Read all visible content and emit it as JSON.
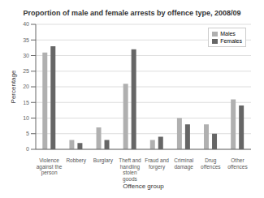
{
  "chart_data": {
    "type": "bar",
    "title": "Proportion of male and female arrests by offence type, 2008/09",
    "xlabel": "Offence group",
    "ylabel": "Percentage",
    "categories": [
      "Violence\nagainst the\nperson",
      "Robbery",
      "Burglary",
      "Theft and\nhandling\nstolen\ngoods",
      "Fraud and\nforgery",
      "Criminal\ndamage",
      "Drug\noffences",
      "Other\noffences"
    ],
    "series": [
      {
        "name": "Males",
        "color": "#b0b0b0",
        "values": [
          31,
          3,
          7,
          21,
          3,
          10,
          8,
          16
        ]
      },
      {
        "name": "Females",
        "color": "#666666",
        "values": [
          33,
          2,
          3,
          32,
          4,
          8,
          5,
          14
        ]
      }
    ],
    "ylim": [
      0,
      40
    ],
    "yticks": [
      0,
      5,
      10,
      15,
      20,
      25,
      30,
      35,
      40
    ],
    "grid": true,
    "legend": "upper right"
  }
}
